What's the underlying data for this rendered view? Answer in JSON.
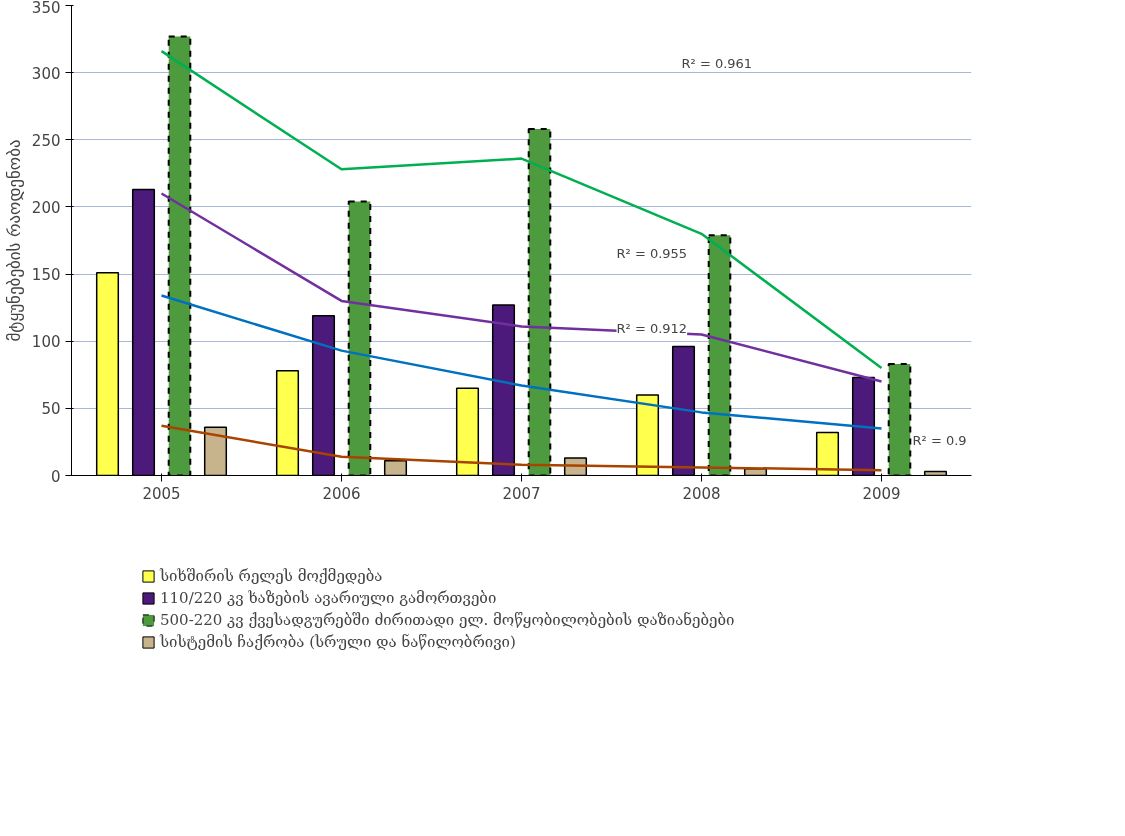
{
  "chart_data": {
    "type": "bar",
    "ylabel": "მტყუნებების რაოდენობა",
    "categories": [
      "2005",
      "2006",
      "2007",
      "2008",
      "2009"
    ],
    "series": [
      {
        "name": "სიხშირის რელეს მოქმედება",
        "color": "#ffff4d",
        "values": [
          151,
          78,
          65,
          60,
          32
        ]
      },
      {
        "name": "110/220 კვ ხაზების ავარიული გამორთვები",
        "color": "#4b1a7a",
        "values": [
          213,
          119,
          127,
          96,
          73
        ]
      },
      {
        "name": "500-220 კვ ქვესადგურებში ძირითადი ელ. მოწყობილობების დაზიანებები",
        "color": "#4e9a3e",
        "values": [
          327,
          204,
          258,
          179,
          83
        ],
        "line_style": "dashed"
      },
      {
        "name": "სისტემის ჩაქრობა (სრული და ნაწილობრივი)",
        "color": "#c8b48c",
        "values": [
          36,
          11,
          13,
          5,
          3
        ]
      },
      {
        "type": "line",
        "color": "#00b050",
        "values": [
          316,
          228,
          236,
          180,
          80
        ]
      },
      {
        "type": "line",
        "color": "#7030a0",
        "values": [
          210,
          130,
          111,
          105,
          70
        ]
      },
      {
        "type": "line",
        "color": "#0070c0",
        "values": [
          134,
          93,
          67,
          47,
          35
        ]
      },
      {
        "type": "line",
        "color": "#a84400",
        "values": [
          37,
          14,
          8,
          6,
          4
        ]
      }
    ],
    "annotations": [
      "R² = 0.961",
      "R² = 0.955",
      "R² = 0.912",
      "R² = 0.9"
    ],
    "ylim": [
      0,
      350
    ],
    "yticks": [
      0,
      50,
      100,
      150,
      200,
      250,
      300,
      350
    ],
    "grid": "y",
    "legend": "bottom"
  }
}
